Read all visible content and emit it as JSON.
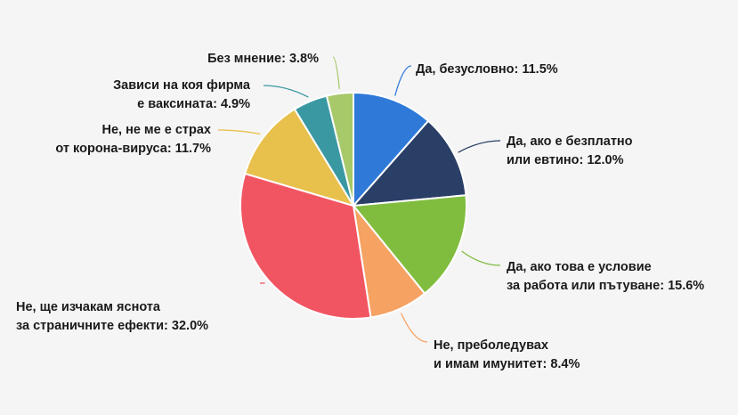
{
  "chart_data": {
    "type": "pie",
    "slices": [
      {
        "lines": [
          "Да, безусловно: 11.5%"
        ],
        "value": 11.5,
        "color": "#2f7ad9"
      },
      {
        "lines": [
          "Да, ако е безплатно",
          "или евтино: 12.0%"
        ],
        "value": 12.0,
        "color": "#2a3f66"
      },
      {
        "lines": [
          "Да, ако това е условие",
          "за работа или пътуване: 15.6%"
        ],
        "value": 15.6,
        "color": "#80bd3f"
      },
      {
        "lines": [
          "Не, преболедувах",
          "и имам имунитет: 8.4%"
        ],
        "value": 8.4,
        "color": "#f6a262"
      },
      {
        "lines": [
          "Не, ще изчакам яснота",
          "за страничните ефекти: 32.0%"
        ],
        "value": 32.0,
        "color": "#f25562"
      },
      {
        "lines": [
          "Не, не ме е страх",
          "от корона-вируса: 11.7%"
        ],
        "value": 11.7,
        "color": "#e8c04c"
      },
      {
        "lines": [
          "Зависи на коя фирма",
          "е ваксината: 4.9%"
        ],
        "value": 4.9,
        "color": "#3a98a2"
      },
      {
        "lines": [
          "Без мнение: 3.8%"
        ],
        "value": 3.8,
        "color": "#a7c96a"
      }
    ]
  }
}
